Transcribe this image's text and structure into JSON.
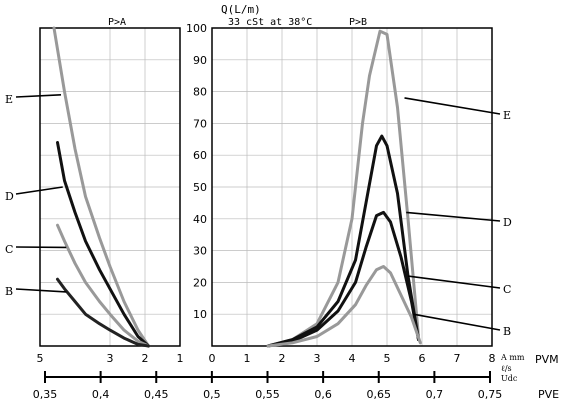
{
  "chart_data": {
    "type": "line",
    "left_panel": {
      "title": "P>A",
      "x_ticks": [
        "5",
        "3",
        "2",
        "1"
      ],
      "x_tick_values": [
        5,
        3,
        2,
        1
      ],
      "xlim": [
        5,
        1
      ],
      "series": [
        {
          "label": "E",
          "color": "#999999",
          "points": [
            [
              4.6,
              100
            ],
            [
              4.3,
              80
            ],
            [
              4.0,
              62
            ],
            [
              3.7,
              47
            ],
            [
              3.3,
              34
            ],
            [
              3.0,
              25
            ],
            [
              2.6,
              14
            ],
            [
              2.2,
              5
            ],
            [
              1.9,
              0
            ]
          ]
        },
        {
          "label": "D",
          "color": "#111111",
          "points": [
            [
              4.5,
              64
            ],
            [
              4.3,
              52
            ],
            [
              4.0,
              42
            ],
            [
              3.7,
              33
            ],
            [
              3.3,
              24
            ],
            [
              3.0,
              18
            ],
            [
              2.6,
              10
            ],
            [
              2.2,
              3
            ],
            [
              1.9,
              0
            ]
          ]
        },
        {
          "label": "C",
          "color": "#999999",
          "points": [
            [
              4.5,
              38
            ],
            [
              4.3,
              33
            ],
            [
              4.0,
              26
            ],
            [
              3.7,
              20
            ],
            [
              3.3,
              14
            ],
            [
              3.0,
              10
            ],
            [
              2.6,
              5
            ],
            [
              2.2,
              1.5
            ],
            [
              1.9,
              0
            ]
          ]
        },
        {
          "label": "B",
          "color": "#222222",
          "points": [
            [
              4.5,
              21
            ],
            [
              4.3,
              18
            ],
            [
              4.0,
              14
            ],
            [
              3.7,
              10
            ],
            [
              3.3,
              7
            ],
            [
              3.0,
              5
            ],
            [
              2.6,
              2.5
            ],
            [
              2.2,
              0.5
            ],
            [
              1.9,
              0
            ]
          ]
        }
      ]
    },
    "right_panel": {
      "title": "P>B",
      "x_ticks": [
        "0",
        "1",
        "2",
        "3",
        "4",
        "5",
        "6",
        "7",
        "8"
      ],
      "xlim": [
        0,
        8
      ],
      "series": [
        {
          "label": "E",
          "color": "#999999",
          "points": [
            [
              1.6,
              0
            ],
            [
              2.3,
              2
            ],
            [
              3.0,
              7
            ],
            [
              3.6,
              20
            ],
            [
              4.0,
              40
            ],
            [
              4.3,
              70
            ],
            [
              4.5,
              85
            ],
            [
              4.8,
              99
            ],
            [
              5.0,
              98
            ],
            [
              5.3,
              75
            ],
            [
              5.6,
              40
            ],
            [
              5.9,
              3
            ]
          ]
        },
        {
          "label": "D",
          "color": "#111111",
          "points": [
            [
              1.6,
              0
            ],
            [
              2.3,
              2
            ],
            [
              3.0,
              6
            ],
            [
              3.6,
              14
            ],
            [
              4.1,
              27
            ],
            [
              4.4,
              45
            ],
            [
              4.7,
              63
            ],
            [
              4.85,
              66
            ],
            [
              5.0,
              63
            ],
            [
              5.3,
              48
            ],
            [
              5.6,
              22
            ],
            [
              5.9,
              2
            ]
          ]
        },
        {
          "label": "C",
          "color": "#111111",
          "points": [
            [
              1.6,
              0
            ],
            [
              2.3,
              1.5
            ],
            [
              3.0,
              5
            ],
            [
              3.6,
              11
            ],
            [
              4.1,
              20
            ],
            [
              4.4,
              31
            ],
            [
              4.7,
              41
            ],
            [
              4.9,
              42
            ],
            [
              5.1,
              39
            ],
            [
              5.4,
              28
            ],
            [
              5.7,
              14
            ],
            [
              5.9,
              2
            ]
          ]
        },
        {
          "label": "B",
          "color": "#999999",
          "points": [
            [
              1.6,
              0
            ],
            [
              2.3,
              1
            ],
            [
              3.0,
              3
            ],
            [
              3.6,
              7
            ],
            [
              4.1,
              13
            ],
            [
              4.4,
              19
            ],
            [
              4.7,
              24
            ],
            [
              4.9,
              25
            ],
            [
              5.1,
              23
            ],
            [
              5.4,
              16
            ],
            [
              5.7,
              9
            ],
            [
              5.95,
              1
            ]
          ]
        }
      ]
    },
    "y_axis": {
      "label": "Q(L/m)",
      "ticks": [
        "10",
        "20",
        "30",
        "40",
        "50",
        "60",
        "70",
        "80",
        "90",
        "100"
      ],
      "ylim": [
        0,
        100
      ]
    },
    "annotation": "33 cSt at 38°C",
    "bottom_axis_labels": {
      "pvm": "PVM",
      "pve": "PVE",
      "stack_1": "A mm",
      "stack_2": "ℓ/s",
      "stack_3": "Udc"
    },
    "pve_ticks": [
      "0,35",
      "0,4",
      "0,45",
      "0,5",
      "0,55",
      "0,6",
      "0,65",
      "0,7",
      "0,75"
    ],
    "grid": true
  }
}
